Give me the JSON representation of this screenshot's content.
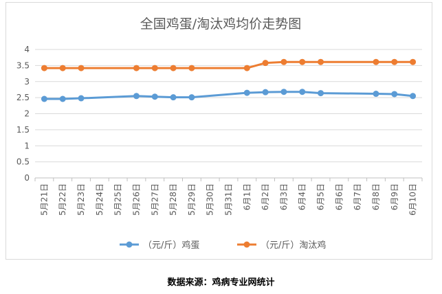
{
  "chart_data": {
    "type": "line",
    "title": "全国鸡蛋/淘汰鸡均价走势图",
    "categories": [
      "5月21日",
      "5月22日",
      "5月23日",
      "5月24日",
      "5月25日",
      "5月26日",
      "5月27日",
      "5月28日",
      "5月29日",
      "5月30日",
      "5月31日",
      "6月1日",
      "6月2日",
      "6月3日",
      "6月4日",
      "6月5日",
      "6月6日",
      "6月7日",
      "6月8日",
      "6月9日",
      "6月10日"
    ],
    "y_ticks": [
      "0",
      "0.5",
      "1",
      "1.5",
      "2",
      "2.5",
      "3",
      "3.5",
      "4"
    ],
    "ylim": [
      0,
      4
    ],
    "grid": true,
    "legend_position": "bottom",
    "series": [
      {
        "name": "（元/斤）鸡蛋",
        "color": "#5b9bd5",
        "values": [
          2.46,
          2.46,
          2.48,
          null,
          null,
          2.55,
          2.53,
          2.51,
          2.51,
          null,
          null,
          2.65,
          2.67,
          2.68,
          2.68,
          2.64,
          null,
          null,
          2.62,
          2.61,
          2.55
        ]
      },
      {
        "name": "（元/斤）淘汰鸡",
        "color": "#ed7d31",
        "values": [
          3.42,
          3.42,
          3.42,
          null,
          null,
          3.42,
          3.42,
          3.42,
          3.42,
          null,
          null,
          3.42,
          3.58,
          3.61,
          3.61,
          3.61,
          null,
          null,
          3.61,
          3.61,
          3.61
        ]
      }
    ]
  },
  "source_note": "数据来源：鸡病专业网统计"
}
